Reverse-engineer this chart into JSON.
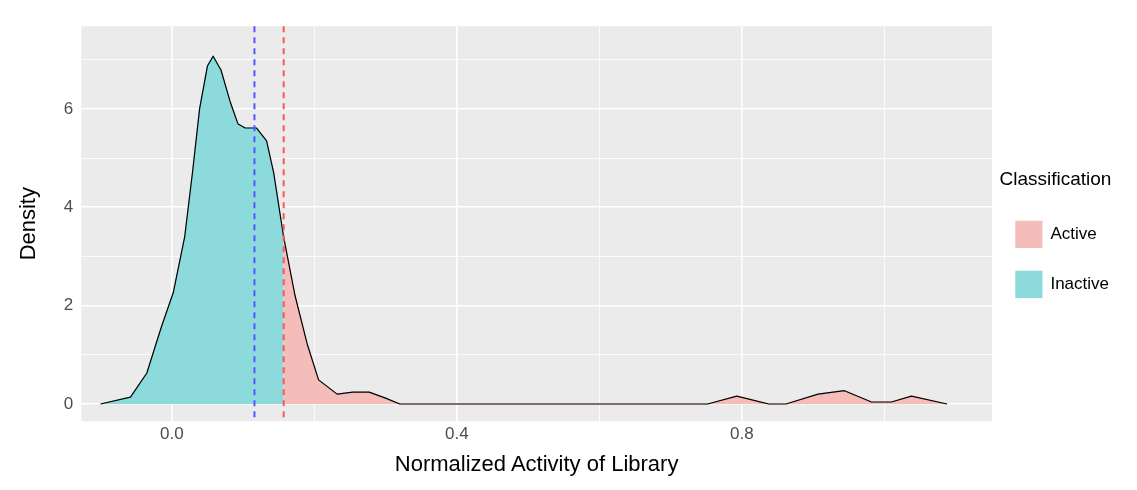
{
  "chart_data": {
    "type": "area",
    "xlabel": "Normalized Activity of Library",
    "ylabel": "Density",
    "legend_title": "Classification",
    "legend": "right",
    "grid": true,
    "marker": "none",
    "xlim": [
      -0.127,
      1.151
    ],
    "ylim": [
      -0.35,
      7.68
    ],
    "xticks": [
      {
        "value": 0,
        "label": "0.0"
      },
      {
        "value": 0.2,
        "label": null
      },
      {
        "value": 0.4,
        "label": "0.4"
      },
      {
        "value": 0.6,
        "label": null
      },
      {
        "value": 0.8,
        "label": "0.8"
      },
      {
        "value": 1.0,
        "label": null
      }
    ],
    "yticks": [
      0,
      {
        "value": 1,
        "label": null
      },
      2,
      {
        "value": 3,
        "label": null
      },
      4,
      {
        "value": 5,
        "label": null
      },
      6,
      {
        "value": 7,
        "label": null
      }
    ],
    "series": [
      {
        "name": "Active",
        "color": "#f4bdb9",
        "x": [
          0.157,
          0.173,
          0.19,
          0.206,
          0.232,
          0.254,
          0.277,
          0.3,
          0.32,
          0.752,
          0.793,
          0.838,
          0.862,
          0.907,
          0.944,
          0.982,
          1.01,
          1.038,
          1.088
        ],
        "values": [
          3.39,
          2.2,
          1.22,
          0.49,
          0.2,
          0.24,
          0.24,
          0.12,
          0,
          0,
          0.16,
          0,
          0,
          0.2,
          0.27,
          0.04,
          0.04,
          0.16,
          0
        ]
      },
      {
        "name": "Inactive",
        "color": "#8ddadc",
        "x": [
          -0.1,
          -0.058,
          -0.035,
          -0.015,
          0.002,
          0.018,
          0.029,
          0.039,
          0.05,
          0.058,
          0.069,
          0.082,
          0.093,
          0.103,
          0.119,
          0.133,
          0.143,
          0.157
        ],
        "values": [
          0,
          0.14,
          0.63,
          1.55,
          2.26,
          3.39,
          4.7,
          6.0,
          6.87,
          7.07,
          6.79,
          6.14,
          5.69,
          5.61,
          5.61,
          5.35,
          4.7,
          3.39
        ]
      }
    ],
    "ref_lines": [
      {
        "axis": "x",
        "value": 0.116,
        "color": "#5555ff",
        "line_style": "dashed"
      },
      {
        "axis": "x",
        "value": 0.157,
        "color": "#ff5555",
        "line_style": "dashed"
      }
    ]
  }
}
